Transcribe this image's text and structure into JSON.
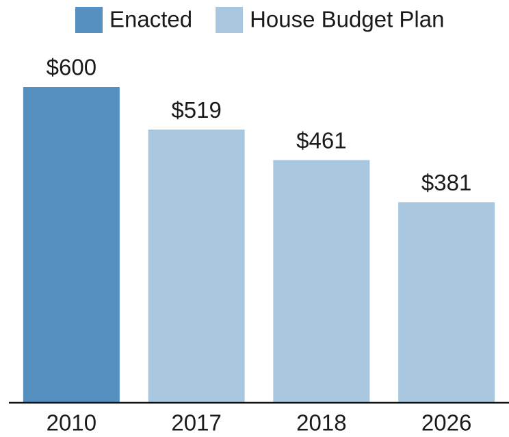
{
  "chart_data": {
    "type": "bar",
    "categories": [
      "2010",
      "2017",
      "2018",
      "2026"
    ],
    "series": [
      {
        "name": "Enacted",
        "color": "#5690c0",
        "values": [
          600,
          null,
          null,
          null
        ],
        "value_labels": [
          "$600",
          null,
          null,
          null
        ]
      },
      {
        "name": "House Budget Plan",
        "color": "#a9c8e0",
        "values": [
          null,
          519,
          461,
          381
        ],
        "value_labels": [
          null,
          "$519",
          "$461",
          "$381"
        ]
      }
    ],
    "ylim": [
      0,
      600
    ]
  }
}
